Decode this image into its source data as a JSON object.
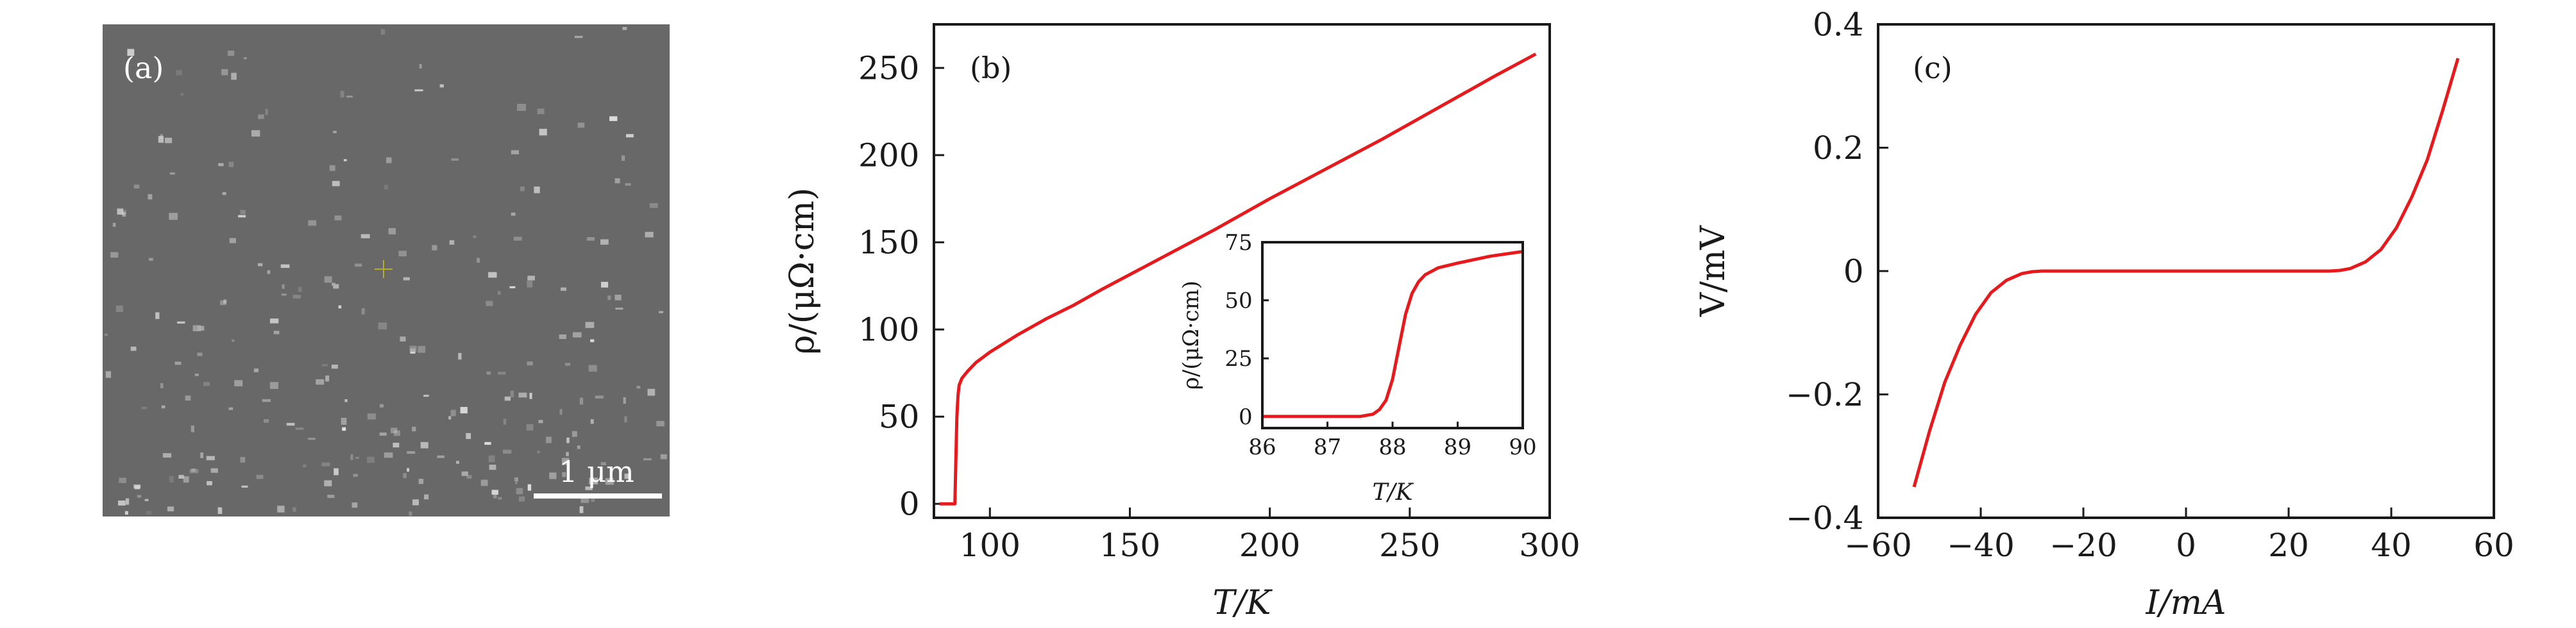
{
  "colors": {
    "curve": "#e8191c",
    "axis": "#1a1a1a",
    "sem_background": "#686868",
    "sem_speck": "#b9b9b9",
    "sem_scalebar": "#ffffff",
    "sem_marker": "#b7ad2d"
  },
  "panel_a": {
    "label": "(a)",
    "scalebar_label": "1 μm"
  },
  "chart_data": [
    {
      "panel": "(b)",
      "type": "line",
      "xlabel": "T/K",
      "ylabel": "ρ/(μΩ·cm)",
      "xlim": [
        80,
        300
      ],
      "ylim": [
        -8,
        275
      ],
      "xticks": [
        100,
        150,
        200,
        250,
        300
      ],
      "yticks": [
        0,
        50,
        100,
        150,
        200,
        250
      ],
      "grid": false,
      "series": [
        {
          "x": [
            82,
            86,
            87.5,
            87.9,
            88.2,
            88.6,
            89,
            90,
            92,
            95,
            100,
            110,
            120,
            130,
            140,
            160,
            180,
            200,
            220,
            240,
            260,
            280,
            295
          ],
          "y": [
            0,
            0,
            0,
            30,
            50,
            62,
            68,
            72,
            76,
            81,
            87,
            97,
            106,
            114,
            123,
            140,
            157,
            175,
            192,
            209,
            227,
            245,
            258
          ]
        }
      ],
      "inset": {
        "type": "line",
        "xlabel": "T/K",
        "ylabel": "ρ/(μΩ·cm)",
        "xlim": [
          86,
          90
        ],
        "ylim": [
          -5,
          75
        ],
        "xticks": [
          86,
          87,
          88,
          89,
          90
        ],
        "yticks": [
          0,
          25,
          50,
          75
        ],
        "series": [
          {
            "x": [
              86,
              87,
              87.5,
              87.7,
              87.8,
              87.9,
              88.0,
              88.1,
              88.2,
              88.3,
              88.4,
              88.5,
              88.7,
              89.0,
              89.5,
              90.0
            ],
            "y": [
              0,
              0,
              0,
              1,
              3,
              7,
              16,
              30,
              44,
              53,
              58,
              61,
              64,
              66,
              69,
              71
            ]
          }
        ]
      }
    },
    {
      "panel": "(c)",
      "type": "line",
      "xlabel": "I/mA",
      "ylabel": "V/mV",
      "xlim": [
        -60,
        60
      ],
      "ylim": [
        -0.4,
        0.4
      ],
      "xticks": [
        -60,
        -40,
        -20,
        0,
        20,
        40,
        60
      ],
      "yticks": [
        -0.4,
        -0.2,
        0,
        0.2,
        0.4
      ],
      "xtick_labels": [
        "−60",
        "−40",
        "−20",
        "0",
        "20",
        "40",
        "60"
      ],
      "ytick_labels": [
        "−0.4",
        "−0.2",
        "0",
        "0.2",
        "0.4"
      ],
      "grid": false,
      "series": [
        {
          "x": [
            -53,
            -50,
            -47,
            -44,
            -41,
            -38,
            -35,
            -32,
            -30,
            -28,
            -20,
            0,
            20,
            28,
            30,
            32,
            35,
            38,
            41,
            44,
            47,
            50,
            53
          ],
          "y": [
            -0.35,
            -0.26,
            -0.18,
            -0.12,
            -0.07,
            -0.035,
            -0.015,
            -0.004,
            -0.001,
            0,
            0,
            0,
            0,
            0,
            0.001,
            0.004,
            0.015,
            0.035,
            0.07,
            0.12,
            0.18,
            0.26,
            0.345
          ]
        }
      ]
    }
  ]
}
